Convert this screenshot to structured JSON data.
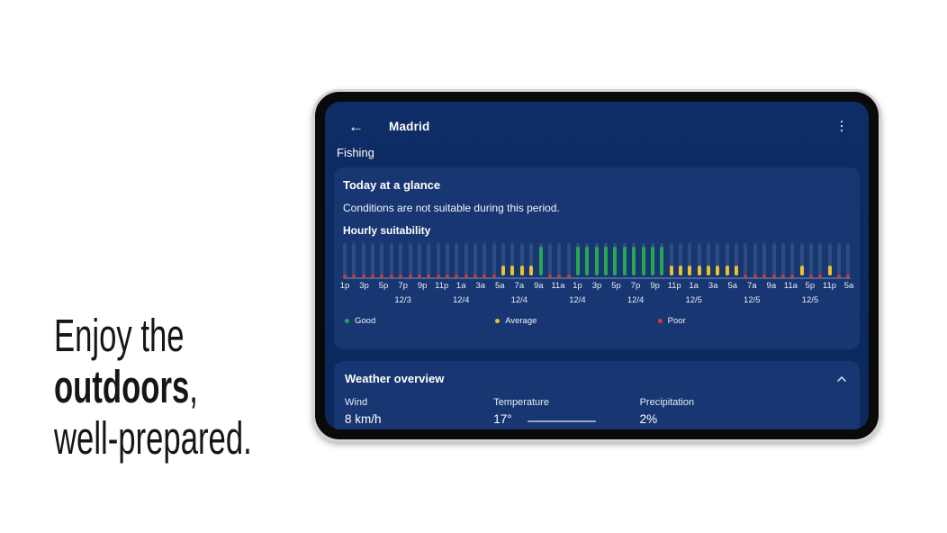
{
  "tagline": {
    "line1": "Enjoy the",
    "line2_bold": "outdoors",
    "line2_suffix": ",",
    "line3": "well-prepared."
  },
  "app": {
    "header": {
      "back_icon": "←",
      "title": "Madrid",
      "subtitle": "Fishing",
      "menu_icon": "kebab-menu"
    },
    "glance_card": {
      "title": "Today at a glance",
      "message": "Conditions are not suitable during this period.",
      "chart_title": "Hourly suitability"
    },
    "weather_card": {
      "title": "Weather overview",
      "collapse_icon": "chevron-up",
      "metrics": [
        {
          "label": "Wind",
          "value": "8 km/h"
        },
        {
          "label": "Temperature",
          "value": "17°"
        },
        {
          "label": "Precipitation",
          "value": "2%"
        }
      ]
    }
  },
  "chart_data": {
    "type": "bar",
    "title": "Hourly suitability",
    "statuses": [
      "poor",
      "poor",
      "poor",
      "poor",
      "poor",
      "poor",
      "poor",
      "poor",
      "poor",
      "poor",
      "poor",
      "poor",
      "poor",
      "poor",
      "poor",
      "poor",
      "poor",
      "average",
      "average",
      "average",
      "average",
      "good",
      "poor",
      "poor",
      "poor",
      "good",
      "good",
      "good",
      "good",
      "good",
      "good",
      "good",
      "good",
      "good",
      "good",
      "average",
      "average",
      "average",
      "average",
      "average",
      "average",
      "average",
      "average",
      "poor",
      "poor",
      "poor",
      "poor",
      "poor",
      "poor",
      "average",
      "poor",
      "poor",
      "average",
      "poor",
      "poor"
    ],
    "value_map": {
      "good": 0.9,
      "average": 0.3,
      "poor": 0.05
    },
    "status_colors": {
      "good": "#27a750",
      "average": "#eec02f",
      "poor": "#d03c30"
    },
    "x_tick_labels": [
      "1p",
      "3p",
      "5p",
      "7p",
      "9p",
      "11p",
      "1a",
      "3a",
      "5a",
      "7a",
      "9a",
      "11a",
      "1p",
      "3p",
      "5p",
      "7p",
      "9p",
      "11p",
      "1a",
      "3a",
      "5a",
      "7a",
      "9a",
      "11a",
      "5p",
      "11p",
      "5a"
    ],
    "date_labels": [
      {
        "tick_index": 3,
        "label": "12/3"
      },
      {
        "tick_index": 6,
        "label": "12/4"
      },
      {
        "tick_index": 9,
        "label": "12/4"
      },
      {
        "tick_index": 12,
        "label": "12/4"
      },
      {
        "tick_index": 15,
        "label": "12/4"
      },
      {
        "tick_index": 18,
        "label": "12/5"
      },
      {
        "tick_index": 21,
        "label": "12/5"
      },
      {
        "tick_index": 24,
        "label": "12/5"
      }
    ],
    "legend": [
      {
        "label": "Good",
        "color": "#27a750"
      },
      {
        "label": "Average",
        "color": "#eec02f"
      },
      {
        "label": "Poor",
        "color": "#d03c30"
      }
    ],
    "legend_position": "bottom",
    "grid": false,
    "track_color": "#2e4c7e",
    "baseline_color": "#4c6398"
  },
  "colors": {
    "page_bg": "#ffffff",
    "screen_bg": "#0d2a60",
    "card_bg": "#183672",
    "text": "#ffffff"
  }
}
